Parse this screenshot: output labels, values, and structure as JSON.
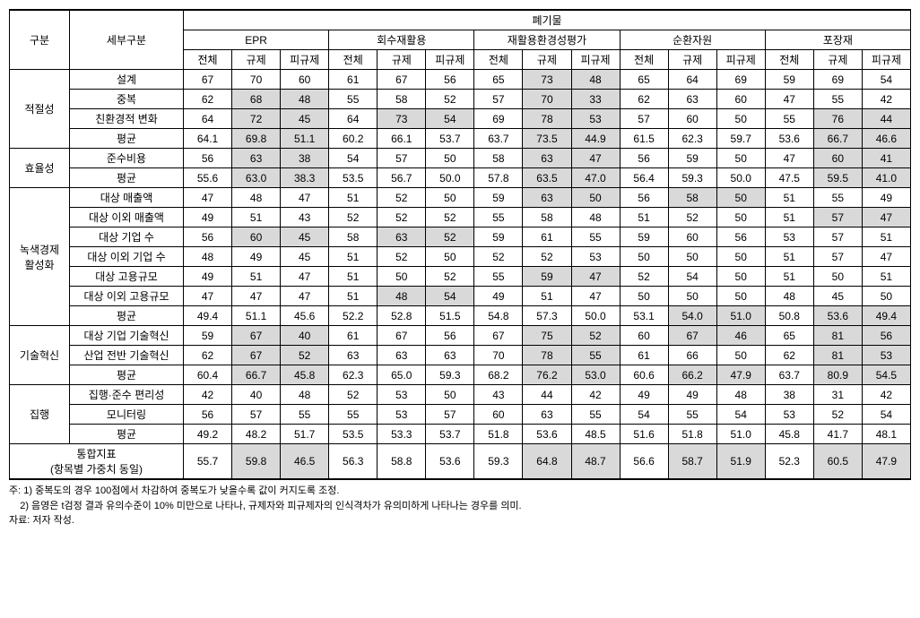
{
  "header": {
    "col_category": "구분",
    "col_subcategory": "세부구분",
    "col_waste": "폐기물",
    "groups": [
      "EPR",
      "회수재활용",
      "재활용환경성평가",
      "순환자원",
      "포장재"
    ],
    "subcols": [
      "전체",
      "규제",
      "피규제"
    ]
  },
  "categories": [
    {
      "name": "적절성",
      "rows": [
        {
          "label": "설계",
          "values": [
            "67",
            "70",
            "60",
            "61",
            "67",
            "56",
            "65",
            "73",
            "48",
            "65",
            "64",
            "69",
            "59",
            "69",
            "54"
          ],
          "shaded": [
            0,
            0,
            0,
            0,
            0,
            0,
            0,
            1,
            1,
            0,
            0,
            0,
            0,
            0,
            0
          ]
        },
        {
          "label": "중복",
          "values": [
            "62",
            "68",
            "48",
            "55",
            "58",
            "52",
            "57",
            "70",
            "33",
            "62",
            "63",
            "60",
            "47",
            "55",
            "42"
          ],
          "shaded": [
            0,
            1,
            1,
            0,
            0,
            0,
            0,
            1,
            1,
            0,
            0,
            0,
            0,
            0,
            0
          ]
        },
        {
          "label": "친환경적 변화",
          "values": [
            "64",
            "72",
            "45",
            "64",
            "73",
            "54",
            "69",
            "78",
            "53",
            "57",
            "60",
            "50",
            "55",
            "76",
            "44"
          ],
          "shaded": [
            0,
            1,
            1,
            0,
            1,
            1,
            0,
            1,
            1,
            0,
            0,
            0,
            0,
            1,
            1
          ]
        },
        {
          "label": "평균",
          "values": [
            "64.1",
            "69.8",
            "51.1",
            "60.2",
            "66.1",
            "53.7",
            "63.7",
            "73.5",
            "44.9",
            "61.5",
            "62.3",
            "59.7",
            "53.6",
            "66.7",
            "46.6"
          ],
          "shaded": [
            0,
            1,
            1,
            0,
            0,
            0,
            0,
            1,
            1,
            0,
            0,
            0,
            0,
            1,
            1
          ]
        }
      ]
    },
    {
      "name": "효율성",
      "rows": [
        {
          "label": "준수비용",
          "values": [
            "56",
            "63",
            "38",
            "54",
            "57",
            "50",
            "58",
            "63",
            "47",
            "56",
            "59",
            "50",
            "47",
            "60",
            "41"
          ],
          "shaded": [
            0,
            1,
            1,
            0,
            0,
            0,
            0,
            1,
            1,
            0,
            0,
            0,
            0,
            1,
            1
          ]
        },
        {
          "label": "평균",
          "values": [
            "55.6",
            "63.0",
            "38.3",
            "53.5",
            "56.7",
            "50.0",
            "57.8",
            "63.5",
            "47.0",
            "56.4",
            "59.3",
            "50.0",
            "47.5",
            "59.5",
            "41.0"
          ],
          "shaded": [
            0,
            1,
            1,
            0,
            0,
            0,
            0,
            1,
            1,
            0,
            0,
            0,
            0,
            1,
            1
          ]
        }
      ]
    },
    {
      "name": "녹색경제\n활성화",
      "rows": [
        {
          "label": "대상 매출액",
          "values": [
            "47",
            "48",
            "47",
            "51",
            "52",
            "50",
            "59",
            "63",
            "50",
            "56",
            "58",
            "50",
            "51",
            "55",
            "49"
          ],
          "shaded": [
            0,
            0,
            0,
            0,
            0,
            0,
            0,
            1,
            1,
            0,
            1,
            1,
            0,
            0,
            0
          ]
        },
        {
          "label": "대상 이외 매출액",
          "values": [
            "49",
            "51",
            "43",
            "52",
            "52",
            "52",
            "55",
            "58",
            "48",
            "51",
            "52",
            "50",
            "51",
            "57",
            "47"
          ],
          "shaded": [
            0,
            0,
            0,
            0,
            0,
            0,
            0,
            0,
            0,
            0,
            0,
            0,
            0,
            1,
            1
          ]
        },
        {
          "label": "대상 기업 수",
          "values": [
            "56",
            "60",
            "45",
            "58",
            "63",
            "52",
            "59",
            "61",
            "55",
            "59",
            "60",
            "56",
            "53",
            "57",
            "51"
          ],
          "shaded": [
            0,
            1,
            1,
            0,
            1,
            1,
            0,
            0,
            0,
            0,
            0,
            0,
            0,
            0,
            0
          ]
        },
        {
          "label": "대상 이외 기업 수",
          "values": [
            "48",
            "49",
            "45",
            "51",
            "52",
            "50",
            "52",
            "52",
            "53",
            "50",
            "50",
            "50",
            "51",
            "57",
            "47"
          ],
          "shaded": [
            0,
            0,
            0,
            0,
            0,
            0,
            0,
            0,
            0,
            0,
            0,
            0,
            0,
            0,
            0
          ]
        },
        {
          "label": "대상 고용규모",
          "values": [
            "49",
            "51",
            "47",
            "51",
            "50",
            "52",
            "55",
            "59",
            "47",
            "52",
            "54",
            "50",
            "51",
            "50",
            "51"
          ],
          "shaded": [
            0,
            0,
            0,
            0,
            0,
            0,
            0,
            1,
            1,
            0,
            0,
            0,
            0,
            0,
            0
          ]
        },
        {
          "label": "대상 이외 고용규모",
          "values": [
            "47",
            "47",
            "47",
            "51",
            "48",
            "54",
            "49",
            "51",
            "47",
            "50",
            "50",
            "50",
            "48",
            "45",
            "50"
          ],
          "shaded": [
            0,
            0,
            0,
            0,
            1,
            1,
            0,
            0,
            0,
            0,
            0,
            0,
            0,
            0,
            0
          ]
        },
        {
          "label": "평균",
          "values": [
            "49.4",
            "51.1",
            "45.6",
            "52.2",
            "52.8",
            "51.5",
            "54.8",
            "57.3",
            "50.0",
            "53.1",
            "54.0",
            "51.0",
            "50.8",
            "53.6",
            "49.4"
          ],
          "shaded": [
            0,
            0,
            0,
            0,
            0,
            0,
            0,
            0,
            0,
            0,
            1,
            1,
            0,
            1,
            1
          ]
        }
      ]
    },
    {
      "name": "기술혁신",
      "rows": [
        {
          "label": "대상 기업 기술혁신",
          "values": [
            "59",
            "67",
            "40",
            "61",
            "67",
            "56",
            "67",
            "75",
            "52",
            "60",
            "67",
            "46",
            "65",
            "81",
            "56"
          ],
          "shaded": [
            0,
            1,
            1,
            0,
            0,
            0,
            0,
            1,
            1,
            0,
            1,
            1,
            0,
            1,
            1
          ]
        },
        {
          "label": "산업 전반 기술혁신",
          "values": [
            "62",
            "67",
            "52",
            "63",
            "63",
            "63",
            "70",
            "78",
            "55",
            "61",
            "66",
            "50",
            "62",
            "81",
            "53"
          ],
          "shaded": [
            0,
            1,
            1,
            0,
            0,
            0,
            0,
            1,
            1,
            0,
            0,
            0,
            0,
            1,
            1
          ]
        },
        {
          "label": "평균",
          "values": [
            "60.4",
            "66.7",
            "45.8",
            "62.3",
            "65.0",
            "59.3",
            "68.2",
            "76.2",
            "53.0",
            "60.6",
            "66.2",
            "47.9",
            "63.7",
            "80.9",
            "54.5"
          ],
          "shaded": [
            0,
            1,
            1,
            0,
            0,
            0,
            0,
            1,
            1,
            0,
            1,
            1,
            0,
            1,
            1
          ]
        }
      ]
    },
    {
      "name": "집행",
      "rows": [
        {
          "label": "집행·준수 편리성",
          "values": [
            "42",
            "40",
            "48",
            "52",
            "53",
            "50",
            "43",
            "44",
            "42",
            "49",
            "49",
            "48",
            "38",
            "31",
            "42"
          ],
          "shaded": [
            0,
            0,
            0,
            0,
            0,
            0,
            0,
            0,
            0,
            0,
            0,
            0,
            0,
            0,
            0
          ]
        },
        {
          "label": "모니터링",
          "values": [
            "56",
            "57",
            "55",
            "55",
            "53",
            "57",
            "60",
            "63",
            "55",
            "54",
            "55",
            "54",
            "53",
            "52",
            "54"
          ],
          "shaded": [
            0,
            0,
            0,
            0,
            0,
            0,
            0,
            0,
            0,
            0,
            0,
            0,
            0,
            0,
            0
          ]
        },
        {
          "label": "평균",
          "values": [
            "49.2",
            "48.2",
            "51.7",
            "53.5",
            "53.3",
            "53.7",
            "51.8",
            "53.6",
            "48.5",
            "51.6",
            "51.8",
            "51.0",
            "45.8",
            "41.7",
            "48.1"
          ],
          "shaded": [
            0,
            0,
            0,
            0,
            0,
            0,
            0,
            0,
            0,
            0,
            0,
            0,
            0,
            0,
            0
          ]
        }
      ]
    }
  ],
  "total": {
    "label": "통합지표\n(항목별 가중치 동일)",
    "values": [
      "55.7",
      "59.8",
      "46.5",
      "56.3",
      "58.8",
      "53.6",
      "59.3",
      "64.8",
      "48.7",
      "56.6",
      "58.7",
      "51.9",
      "52.3",
      "60.5",
      "47.9"
    ],
    "shaded": [
      0,
      1,
      1,
      0,
      0,
      0,
      0,
      1,
      1,
      0,
      1,
      1,
      0,
      1,
      1
    ]
  },
  "footnotes": {
    "line1": "주: 1) 중복도의 경우 100점에서 차감하여 중복도가 낮을수록 값이 커지도록 조정.",
    "line2": "    2) 음영은 t검정 결과 유의수준이 10% 미만으로 나타나, 규제자와 피규제자의 인식격차가 유의미하게 나타나는 경우를 의미.",
    "line3": "자료: 저자 작성."
  }
}
